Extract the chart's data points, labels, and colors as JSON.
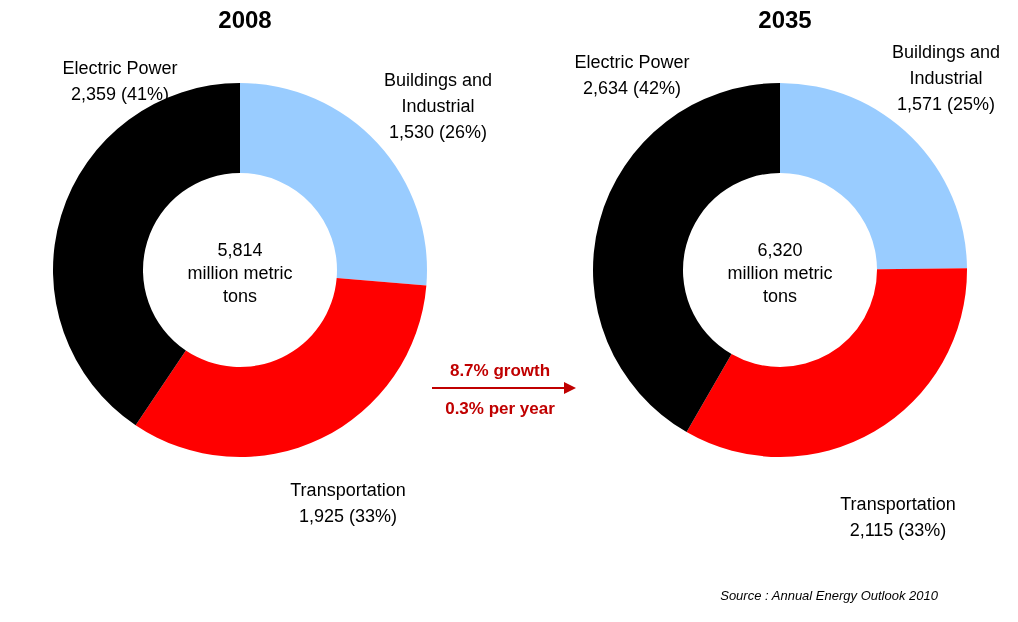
{
  "chart_data": [
    {
      "type": "donut",
      "title": "2008",
      "categories": [
        "Buildings and Industrial",
        "Transportation",
        "Electric Power"
      ],
      "values": [
        1530,
        1925,
        2359
      ],
      "colors": [
        "#99ccff",
        "#ff0000",
        "#000000"
      ],
      "value_labels": [
        "1,530  (26%)",
        "1,925  (33%)",
        "2,359  (41%)"
      ],
      "annotations": [
        "5,814\nmillion metric\ntons"
      ]
    },
    {
      "type": "donut",
      "title": "2035",
      "categories": [
        "Buildings and Industrial",
        "Transportation",
        "Electric Power"
      ],
      "values": [
        1571,
        2115,
        2634
      ],
      "colors": [
        "#99ccff",
        "#ff0000",
        "#000000"
      ],
      "value_labels": [
        "1,571  (25%)",
        "2,115  (33%)",
        "2,634  (42%)"
      ],
      "annotations": [
        "6,320\nmillion metric\ntons",
        "8.7% growth",
        "0.3% per year",
        "Source : Annual Energy Outlook 2010"
      ]
    }
  ]
}
